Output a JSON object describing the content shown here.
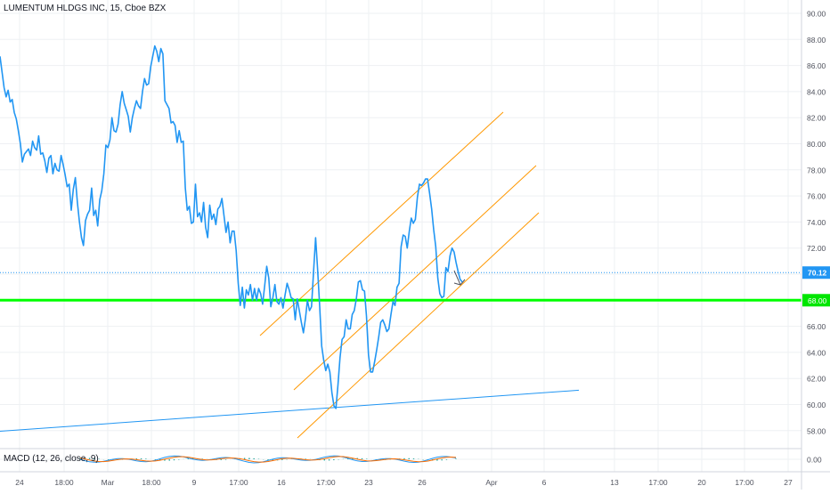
{
  "chart_data": [
    {
      "type": "line",
      "title": "LUMENTUM HLDGS INC, 15, Cboe BZX",
      "x_ticks": [
        "24",
        "18:00",
        "Mar",
        "18:00",
        "9",
        "17:00",
        "16",
        "17:00",
        "23",
        "26",
        "Apr",
        "6",
        "13",
        "17:00",
        "20",
        "17:00",
        "27"
      ],
      "y_ticks": [
        "90.00",
        "88.00",
        "86.00",
        "84.00",
        "82.00",
        "80.00",
        "78.00",
        "76.00",
        "74.00",
        "72.00",
        "70.00",
        "66.00",
        "64.00",
        "62.00",
        "60.00",
        "58.00"
      ],
      "ylim": [
        57,
        91
      ],
      "grid": true,
      "last_price": "70.12",
      "horizontal_level_label": "68.00",
      "series": [
        {
          "values": [
            86.7,
            85.5,
            84.3,
            83.6,
            84.1,
            83.2,
            83.4,
            82.4,
            81.9,
            81.0,
            80.0,
            78.6,
            79.2,
            79.4,
            79.6,
            79.1,
            80.2,
            79.7,
            79.5,
            80.6,
            79.2,
            79.3,
            78.7,
            77.8,
            78.9,
            79.1,
            77.7,
            78.5,
            78.0,
            77.9,
            79.1,
            78.4,
            77.6,
            76.7,
            76.9,
            74.9,
            76.5,
            77.4,
            75.5,
            74.0,
            72.8,
            72.2,
            74.1,
            74.6,
            74.9,
            76.6,
            74.5,
            74.9,
            73.7,
            75.7,
            76.4,
            77.7,
            79.9,
            79.7,
            80.3,
            82.0,
            81.0,
            80.9,
            81.5,
            83.0,
            84.0,
            83.1,
            82.6,
            82.1,
            80.9,
            82.0,
            82.7,
            83.3,
            82.9,
            82.7,
            84.0,
            85.0,
            84.5,
            84.6,
            85.9,
            86.7,
            87.5,
            87.1,
            86.3,
            87.3,
            86.9,
            83.3,
            83.0,
            82.7,
            81.6,
            81.7,
            81.4,
            80.1,
            81.0,
            80.1,
            80.2,
            76.6,
            74.9,
            75.2,
            73.9,
            74.0,
            76.9,
            74.4,
            74.7,
            74.0,
            75.5,
            73.6,
            72.8,
            75.3,
            74.2,
            74.6,
            73.8,
            75.0,
            75.2,
            75.8,
            74.5,
            73.2,
            74.0,
            72.4,
            73.3,
            73.3,
            71.8,
            69.3,
            67.6,
            69.0,
            67.4,
            68.8,
            68.4,
            69.2,
            68.0,
            68.9,
            68.0,
            68.9,
            68.5,
            67.7,
            69.1,
            70.6,
            69.7,
            67.5,
            68.2,
            69.2,
            67.9,
            67.7,
            68.2,
            67.4,
            68.4,
            69.3,
            68.8,
            68.2,
            68.1,
            66.5,
            68.1,
            67.2,
            66.3,
            65.5,
            66.6,
            68.0,
            67.2,
            67.5,
            70.2,
            72.8,
            70.3,
            67.5,
            64.5,
            63.4,
            62.6,
            63.1,
            62.5,
            60.9,
            59.9,
            59.7,
            61.5,
            63.6,
            65.0,
            65.2,
            66.5,
            65.8,
            65.8,
            66.9,
            67.2,
            68.1,
            69.4,
            69.5,
            68.8,
            68.7,
            66.8,
            63.8,
            62.5,
            62.5,
            63.3,
            64.2,
            65.2,
            66.3,
            66.5,
            66.1,
            65.6,
            65.8,
            66.9,
            67.9,
            67.6,
            69.0,
            69.3,
            72.1,
            73.0,
            72.9,
            72.0,
            73.3,
            74.3,
            73.9,
            74.2,
            75.9,
            76.9,
            76.8,
            77.0,
            77.3,
            77.3,
            76.2,
            75.0,
            73.4,
            72.1,
            69.7,
            68.5,
            68.2,
            68.3,
            70.5,
            70.2,
            71.4,
            72.0,
            71.7,
            70.9,
            70.2,
            69.6,
            69.4
          ]
        }
      ],
      "channel_lines": 3,
      "trendline": "rising support"
    },
    {
      "type": "line",
      "title": "MACD (12, 26, close, 9)",
      "y_ticks": [
        "0.00"
      ]
    }
  ],
  "colors": {
    "price_line": "#2196f3",
    "channel": "#ff9800",
    "trendline": "#2196f3",
    "support": "#00ff00",
    "grid": "#eef0f3",
    "axis_text": "#50535e",
    "last_price_badge": "#2196f3",
    "support_badge": "#00e600",
    "macd_line": "#2196f3",
    "signal_line": "#ff6d00",
    "arrow": "#50535e"
  }
}
